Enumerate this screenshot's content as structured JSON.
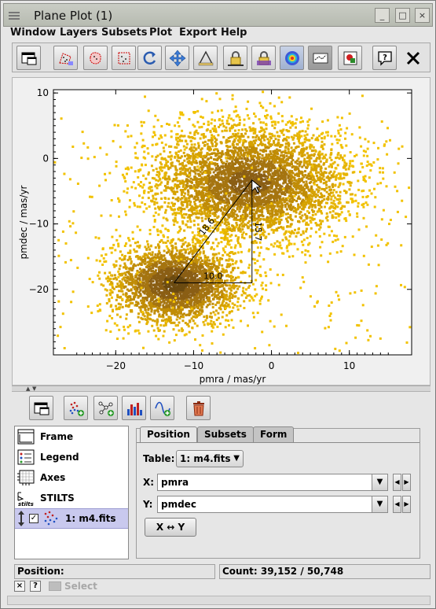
{
  "window": {
    "title": "Plane Plot (1)",
    "buttons": [
      "_",
      "□",
      "×"
    ]
  },
  "menu": [
    {
      "label": "Window",
      "mnemonic": "W"
    },
    {
      "label": "Layers",
      "mnemonic": "L"
    },
    {
      "label": "Subsets",
      "mnemonic": "S"
    },
    {
      "label": "Plot",
      "mnemonic": "P"
    },
    {
      "label": "Export",
      "mnemonic": "E"
    },
    {
      "label": "Help",
      "mnemonic": "H"
    }
  ],
  "toolbar": {
    "icons": [
      "window-icon",
      "draw-subset-icon",
      "blob-subset-icon",
      "algebraic-subset-icon",
      "rescale-icon",
      "navigate-icon",
      "measure-icon",
      "lock-aspect-icon",
      "lock-axes-icon",
      "heat-colour-icon",
      "sketch-icon",
      "export-image-icon",
      "context-help-icon",
      "close-icon"
    ]
  },
  "plot": {
    "xlabel": "pmra / mas/yr",
    "ylabel": "pmdec / mas/yr",
    "xticks": [
      "−20",
      "−10",
      "0",
      "10"
    ],
    "yticks": [
      "10",
      "0",
      "−10",
      "−20"
    ],
    "measure": {
      "dx_label": "10.0",
      "dy_label": "15.7",
      "dist_label": "18.6"
    }
  },
  "chart_data": {
    "type": "scatter",
    "title": "",
    "xlabel": "pmra / mas/yr",
    "ylabel": "pmdec / mas/yr",
    "xlim": [
      -28,
      18
    ],
    "ylim": [
      -30,
      10.5
    ],
    "grid": false,
    "clusters": [
      {
        "center": [
          -3,
          -3.5
        ],
        "sigma_x": 6.5,
        "sigma_y": 4.5
      },
      {
        "center": [
          -12.5,
          -19
        ],
        "sigma_x": 4,
        "sigma_y": 3
      }
    ],
    "measure_line": {
      "from": [
        -12.5,
        -19
      ],
      "to": [
        -2.5,
        -3.3
      ],
      "dx": 10.0,
      "dy": 15.7,
      "distance": 18.6
    },
    "point_color": "#e6b400"
  },
  "controls": {
    "icons": [
      "float-window-icon",
      "add-position-layer-icon",
      "add-pair-layer-icon",
      "add-histogram-layer-icon",
      "add-function-layer-icon",
      "remove-layer-icon"
    ]
  },
  "layers": [
    {
      "label": "Frame",
      "icon": "frame-icon"
    },
    {
      "label": "Legend",
      "icon": "legend-icon"
    },
    {
      "label": "Axes",
      "icon": "axes-icon"
    },
    {
      "label": "STILTS",
      "icon": "stilts-icon"
    },
    {
      "label": "1: m4.fits",
      "icon": "scatter-layer-icon",
      "selected": true,
      "checked": true
    }
  ],
  "tabs": [
    "Position",
    "Subsets",
    "Form"
  ],
  "position": {
    "table_label": "Table:",
    "table_value": "1: m4.fits",
    "x_label": "X:",
    "x_value": "pmra",
    "y_label": "Y:",
    "y_value": "pmdec",
    "swap_label": "X ↔ Y"
  },
  "status": {
    "position_label": "Position:",
    "count_label": "Count: 39,152 / 50,748"
  },
  "bottom": {
    "select_label": "Select"
  },
  "colors": {
    "accent_selection": "#c9c9ee",
    "points": "#e6b400",
    "dense_points": "#6b4a10"
  }
}
